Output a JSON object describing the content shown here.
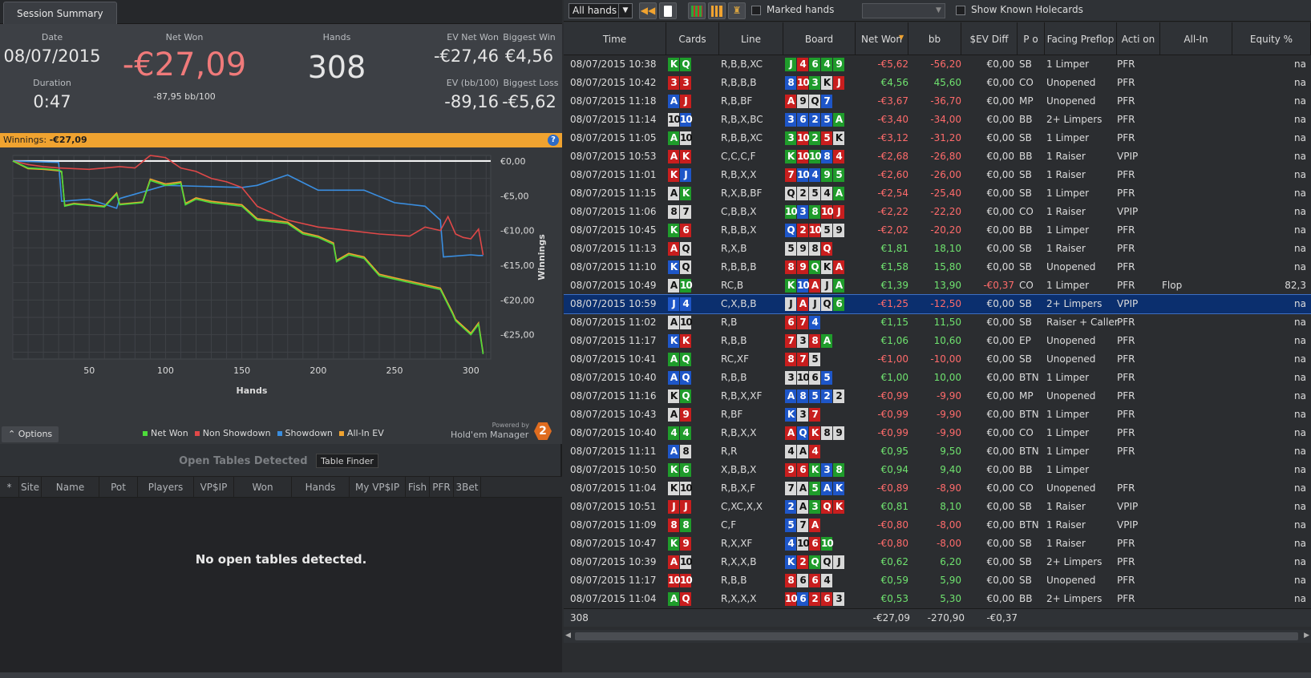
{
  "tab": {
    "label": "Session Summary"
  },
  "summary": {
    "date_label": "Date",
    "date": "08/07/2015",
    "duration_label": "Duration",
    "duration": "0:47",
    "netwon_label": "Net Won",
    "netwon": "-€27,09",
    "bb100": "-87,95 bb/100",
    "hands_label": "Hands",
    "hands": "308",
    "evnetwon_label": "EV Net Won",
    "evnetwon": "-€27,46",
    "biggestwin_label": "Biggest Win",
    "biggestwin": "€4,56",
    "evbb_label": "EV (bb/100)",
    "evbb": "-89,16",
    "biggestloss_label": "Biggest Loss",
    "biggestloss": "-€5,62"
  },
  "banner": {
    "label": "Winnings:",
    "value": "-€27,09"
  },
  "chart_data": {
    "type": "line",
    "title": "",
    "xlabel": "Hands",
    "ylabel": "Winnings",
    "xlim": [
      0,
      313
    ],
    "ylim": [
      -28.5,
      0.8
    ],
    "xticks": [
      50,
      100,
      150,
      200,
      250,
      300
    ],
    "yticks": [
      0,
      -5,
      -10,
      -15,
      -20,
      -25
    ],
    "ytick_labels": [
      "€0,00",
      "-€5,00",
      "-€10,00",
      "-€15,00",
      "-€20,00",
      "-€25,00"
    ],
    "grid": true,
    "legend": "bottom",
    "series": [
      {
        "name": "Net Won",
        "color": "#4ddc3a",
        "x": [
          0,
          10,
          20,
          30,
          32,
          34,
          40,
          60,
          68,
          70,
          85,
          90,
          100,
          110,
          113,
          120,
          130,
          150,
          160,
          180,
          190,
          200,
          210,
          212,
          220,
          230,
          240,
          250,
          270,
          280,
          288,
          290,
          300,
          305,
          308
        ],
        "y": [
          0,
          -1,
          -1.1,
          -1.3,
          -1.5,
          -6.5,
          -6.2,
          -6.6,
          -4.8,
          -6.3,
          -6,
          -2.8,
          -3.5,
          -3.2,
          -6.3,
          -5.5,
          -6,
          -6.5,
          -8.5,
          -9,
          -10.5,
          -11,
          -12,
          -14.5,
          -13.5,
          -14,
          -16.5,
          -17,
          -18,
          -18.5,
          -22,
          -23,
          -25,
          -23.5,
          -27.8
        ]
      },
      {
        "name": "Non Showdown",
        "color": "#e04848",
        "x": [
          0,
          10,
          20,
          30,
          50,
          70,
          80,
          90,
          100,
          110,
          120,
          130,
          140,
          150,
          160,
          180,
          200,
          220,
          240,
          260,
          270,
          280,
          285,
          290,
          295,
          300,
          305,
          308
        ],
        "y": [
          0,
          -0.5,
          -0.8,
          -1,
          -1.2,
          -0.8,
          -1,
          0.8,
          0.5,
          -1,
          -1.5,
          -2.5,
          -3,
          -3.8,
          -6.5,
          -8.5,
          -9.5,
          -10,
          -10.5,
          -10.8,
          -9.5,
          -10,
          -8,
          -10.5,
          -11,
          -11.2,
          -9.8,
          -13.5
        ]
      },
      {
        "name": "Showdown",
        "color": "#3a8ee0",
        "x": [
          0,
          30,
          32,
          50,
          68,
          70,
          100,
          150,
          160,
          180,
          200,
          230,
          250,
          270,
          280,
          282,
          300,
          305,
          308
        ],
        "y": [
          0,
          -0.2,
          -5.8,
          -5.5,
          -6.8,
          -5.4,
          -3.5,
          -3.8,
          -3.5,
          -2,
          -4.2,
          -4.2,
          -6,
          -6.5,
          -8.5,
          -13.8,
          -13.5,
          -13.6,
          -13.6
        ]
      },
      {
        "name": "All-In EV",
        "color": "#f0a330",
        "x": [
          0,
          10,
          20,
          30,
          32,
          34,
          40,
          60,
          68,
          70,
          85,
          90,
          100,
          110,
          113,
          120,
          130,
          150,
          160,
          180,
          190,
          200,
          210,
          212,
          220,
          230,
          240,
          250,
          270,
          280,
          288,
          290,
          300,
          305,
          308
        ],
        "y": [
          0,
          -1.1,
          -1.2,
          -1.4,
          -1.6,
          -6.4,
          -6.1,
          -6.5,
          -4.6,
          -6.2,
          -5.9,
          -2.6,
          -3.3,
          -3,
          -6.1,
          -5.3,
          -5.8,
          -6.3,
          -8.3,
          -8.8,
          -10.3,
          -10.8,
          -11.8,
          -14.3,
          -13.3,
          -13.8,
          -16.3,
          -16.8,
          -17.8,
          -18.3,
          -21.8,
          -22.8,
          -24.8,
          -23.3,
          -27.6
        ]
      }
    ]
  },
  "legend_items": [
    {
      "label": "Net Won",
      "color": "#4ddc3a"
    },
    {
      "label": "Non Showdown",
      "color": "#e04848"
    },
    {
      "label": "Showdown",
      "color": "#3a8ee0"
    },
    {
      "label": "All-In EV",
      "color": "#f0a330"
    }
  ],
  "options_label": "Options",
  "powered_label": "Powered by",
  "logo_label": "Hold'em Manager",
  "logo_badge": "2",
  "open_tables": {
    "title": "Open Tables Detected",
    "finder_label": "Table Finder",
    "empty": "No open tables detected.",
    "columns": [
      "*",
      "Site",
      "Name",
      "Pot",
      "Players",
      "VP$IP",
      "Won",
      "Hands",
      "My VP$IP",
      "Fish",
      "PFR",
      "3Bet"
    ]
  },
  "toolbar": {
    "filter": "All hands",
    "marked_label": "Marked hands",
    "known_label": "Show Known Holecards"
  },
  "columns": [
    "Time",
    "Cards",
    "Line",
    "Board",
    "Net Won",
    "bb",
    "$EV Diff",
    "P o",
    "Facing Preflop",
    "Acti on",
    "All-In",
    "Equity %"
  ],
  "rows": [
    {
      "time": "08/07/2015 10:38",
      "cards": [
        "K c",
        "Q c"
      ],
      "line": "R,B,B,XC",
      "board": [
        "J c",
        "4 h",
        "6 c",
        "4 c",
        "9 c"
      ],
      "won": "-€5,62",
      "bb": "-56,20",
      "ev": "€0,00",
      "pos": "SB",
      "facing": "1 Limper",
      "action": "PFR",
      "allin": "",
      "equity": "na"
    },
    {
      "time": "08/07/2015 10:42",
      "cards": [
        "3 h",
        "3 h"
      ],
      "line": "R,B,B,B",
      "board": [
        "8 d",
        "10 h",
        "3 c",
        "K s",
        "J h"
      ],
      "won": "€4,56",
      "bb": "45,60",
      "ev": "€0,00",
      "pos": "CO",
      "facing": "Unopened",
      "action": "PFR",
      "allin": "",
      "equity": "na"
    },
    {
      "time": "08/07/2015 11:18",
      "cards": [
        "A d",
        "J h"
      ],
      "line": "R,B,BF",
      "board": [
        "A h",
        "9 s",
        "Q s",
        "7 d"
      ],
      "won": "-€3,67",
      "bb": "-36,70",
      "ev": "€0,00",
      "pos": "MP",
      "facing": "Unopened",
      "action": "PFR",
      "allin": "",
      "equity": "na"
    },
    {
      "time": "08/07/2015 11:14",
      "cards": [
        "10 s",
        "10 d"
      ],
      "line": "R,B,X,BC",
      "board": [
        "3 d",
        "6 d",
        "2 d",
        "5 d",
        "A c"
      ],
      "won": "-€3,40",
      "bb": "-34,00",
      "ev": "€0,00",
      "pos": "BB",
      "facing": "2+ Limpers",
      "action": "PFR",
      "allin": "",
      "equity": "na"
    },
    {
      "time": "08/07/2015 11:05",
      "cards": [
        "A c",
        "10 s"
      ],
      "line": "R,B,B,XC",
      "board": [
        "3 c",
        "10 h",
        "2 c",
        "5 h",
        "K s"
      ],
      "won": "-€3,12",
      "bb": "-31,20",
      "ev": "€0,00",
      "pos": "SB",
      "facing": "1 Limper",
      "action": "PFR",
      "allin": "",
      "equity": "na"
    },
    {
      "time": "08/07/2015 10:53",
      "cards": [
        "A h",
        "K h"
      ],
      "line": "C,C,C,F",
      "board": [
        "K c",
        "10 h",
        "10 c",
        "8 d",
        "4 h"
      ],
      "won": "-€2,68",
      "bb": "-26,80",
      "ev": "€0,00",
      "pos": "BB",
      "facing": "1 Raiser",
      "action": "VPIP",
      "allin": "",
      "equity": "na"
    },
    {
      "time": "08/07/2015 11:01",
      "cards": [
        "K h",
        "J d"
      ],
      "line": "R,B,X,X",
      "board": [
        "7 h",
        "10 d",
        "4 d",
        "9 c",
        "5 c"
      ],
      "won": "-€2,60",
      "bb": "-26,00",
      "ev": "€0,00",
      "pos": "SB",
      "facing": "1 Raiser",
      "action": "PFR",
      "allin": "",
      "equity": "na"
    },
    {
      "time": "08/07/2015 11:15",
      "cards": [
        "A s",
        "K c"
      ],
      "line": "R,X,B,BF",
      "board": [
        "Q s",
        "2 s",
        "5 s",
        "4 s",
        "A c"
      ],
      "won": "-€2,54",
      "bb": "-25,40",
      "ev": "€0,00",
      "pos": "SB",
      "facing": "1 Limper",
      "action": "PFR",
      "allin": "",
      "equity": "na"
    },
    {
      "time": "08/07/2015 11:06",
      "cards": [
        "8 s",
        "7 s"
      ],
      "line": "C,B,B,X",
      "board": [
        "10 c",
        "3 d",
        "8 c",
        "10 h",
        "J h"
      ],
      "won": "-€2,22",
      "bb": "-22,20",
      "ev": "€0,00",
      "pos": "CO",
      "facing": "1 Raiser",
      "action": "VPIP",
      "allin": "",
      "equity": "na"
    },
    {
      "time": "08/07/2015 10:45",
      "cards": [
        "K c",
        "6 h"
      ],
      "line": "R,B,B,X",
      "board": [
        "Q d",
        "2 h",
        "10 h",
        "5 s",
        "9 s"
      ],
      "won": "-€2,02",
      "bb": "-20,20",
      "ev": "€0,00",
      "pos": "BB",
      "facing": "1 Limper",
      "action": "PFR",
      "allin": "",
      "equity": "na"
    },
    {
      "time": "08/07/2015 11:13",
      "cards": [
        "A h",
        "Q s"
      ],
      "line": "R,X,B",
      "board": [
        "5 s",
        "9 s",
        "8 s",
        "Q h"
      ],
      "won": "€1,81",
      "bb": "18,10",
      "ev": "€0,00",
      "pos": "SB",
      "facing": "1 Raiser",
      "action": "PFR",
      "allin": "",
      "equity": "na"
    },
    {
      "time": "08/07/2015 11:10",
      "cards": [
        "K d",
        "Q s"
      ],
      "line": "R,B,B,B",
      "board": [
        "8 h",
        "9 h",
        "Q c",
        "K s",
        "A h"
      ],
      "won": "€1,58",
      "bb": "15,80",
      "ev": "€0,00",
      "pos": "SB",
      "facing": "Unopened",
      "action": "PFR",
      "allin": "",
      "equity": "na"
    },
    {
      "time": "08/07/2015 10:49",
      "cards": [
        "A s",
        "10 c"
      ],
      "line": "RC,B",
      "board": [
        "K c",
        "10 d",
        "A h",
        "J s",
        "A c"
      ],
      "won": "€1,39",
      "bb": "13,90",
      "ev": "-€0,37",
      "pos": "CO",
      "facing": "1 Limper",
      "action": "PFR",
      "allin": "Flop",
      "equity": "82,3"
    },
    {
      "time": "08/07/2015 10:59",
      "cards": [
        "J d",
        "4 d"
      ],
      "line": "C,X,B,B",
      "board": [
        "J s",
        "A h",
        "J s",
        "Q s",
        "6 c"
      ],
      "won": "-€1,25",
      "bb": "-12,50",
      "ev": "€0,00",
      "pos": "SB",
      "facing": "2+ Limpers",
      "action": "VPIP",
      "allin": "",
      "equity": "na",
      "selected": true
    },
    {
      "time": "08/07/2015 11:02",
      "cards": [
        "A s",
        "10 s"
      ],
      "line": "R,B",
      "board": [
        "6 h",
        "7 h",
        "4 d"
      ],
      "won": "€1,15",
      "bb": "11,50",
      "ev": "€0,00",
      "pos": "SB",
      "facing": "Raiser + Callers",
      "action": "PFR",
      "allin": "",
      "equity": "na"
    },
    {
      "time": "08/07/2015 11:17",
      "cards": [
        "K d",
        "K h"
      ],
      "line": "R,B,B",
      "board": [
        "7 h",
        "3 s",
        "8 h",
        "A c"
      ],
      "won": "€1,06",
      "bb": "10,60",
      "ev": "€0,00",
      "pos": "EP",
      "facing": "Unopened",
      "action": "PFR",
      "allin": "",
      "equity": "na"
    },
    {
      "time": "08/07/2015 10:41",
      "cards": [
        "A c",
        "Q c"
      ],
      "line": "RC,XF",
      "board": [
        "8 h",
        "7 h",
        "5 s"
      ],
      "won": "-€1,00",
      "bb": "-10,00",
      "ev": "€0,00",
      "pos": "SB",
      "facing": "Unopened",
      "action": "PFR",
      "allin": "",
      "equity": "na"
    },
    {
      "time": "08/07/2015 10:40",
      "cards": [
        "A d",
        "Q d"
      ],
      "line": "R,B,B",
      "board": [
        "3 s",
        "10 s",
        "6 s",
        "5 d"
      ],
      "won": "€1,00",
      "bb": "10,00",
      "ev": "€0,00",
      "pos": "BTN",
      "facing": "1 Limper",
      "action": "PFR",
      "allin": "",
      "equity": "na"
    },
    {
      "time": "08/07/2015 11:16",
      "cards": [
        "K s",
        "Q c"
      ],
      "line": "R,B,X,XF",
      "board": [
        "A d",
        "8 d",
        "5 d",
        "2 d",
        "2 s"
      ],
      "won": "-€0,99",
      "bb": "-9,90",
      "ev": "€0,00",
      "pos": "MP",
      "facing": "Unopened",
      "action": "PFR",
      "allin": "",
      "equity": "na"
    },
    {
      "time": "08/07/2015 10:43",
      "cards": [
        "A s",
        "9 h"
      ],
      "line": "R,BF",
      "board": [
        "K d",
        "3 s",
        "7 h"
      ],
      "won": "-€0,99",
      "bb": "-9,90",
      "ev": "€0,00",
      "pos": "BTN",
      "facing": "1 Limper",
      "action": "PFR",
      "allin": "",
      "equity": "na"
    },
    {
      "time": "08/07/2015 10:40",
      "cards": [
        "4 c",
        "4 c"
      ],
      "line": "R,B,X,X",
      "board": [
        "A h",
        "Q d",
        "K h",
        "8 s",
        "9 s"
      ],
      "won": "-€0,99",
      "bb": "-9,90",
      "ev": "€0,00",
      "pos": "CO",
      "facing": "1 Limper",
      "action": "PFR",
      "allin": "",
      "equity": "na"
    },
    {
      "time": "08/07/2015 11:11",
      "cards": [
        "A d",
        "8 s"
      ],
      "line": "R,R",
      "board": [
        "4 s",
        "A s",
        "4 h"
      ],
      "won": "€0,95",
      "bb": "9,50",
      "ev": "€0,00",
      "pos": "BTN",
      "facing": "1 Limper",
      "action": "PFR",
      "allin": "",
      "equity": "na"
    },
    {
      "time": "08/07/2015 10:50",
      "cards": [
        "K c",
        "6 c"
      ],
      "line": "X,B,B,X",
      "board": [
        "9 h",
        "6 h",
        "K c",
        "3 d",
        "8 c"
      ],
      "won": "€0,94",
      "bb": "9,40",
      "ev": "€0,00",
      "pos": "BB",
      "facing": "1 Limper",
      "action": "",
      "allin": "",
      "equity": "na"
    },
    {
      "time": "08/07/2015 11:04",
      "cards": [
        "K s",
        "10 s"
      ],
      "line": "R,B,X,F",
      "board": [
        "7 s",
        "A s",
        "5 c",
        "A d",
        "K d"
      ],
      "won": "-€0,89",
      "bb": "-8,90",
      "ev": "€0,00",
      "pos": "CO",
      "facing": "Unopened",
      "action": "PFR",
      "allin": "",
      "equity": "na"
    },
    {
      "time": "08/07/2015 10:51",
      "cards": [
        "J h",
        "J h"
      ],
      "line": "C,XC,X,X",
      "board": [
        "2 d",
        "A s",
        "3 c",
        "Q h",
        "K h"
      ],
      "won": "€0,81",
      "bb": "8,10",
      "ev": "€0,00",
      "pos": "SB",
      "facing": "1 Raiser",
      "action": "VPIP",
      "allin": "",
      "equity": "na"
    },
    {
      "time": "08/07/2015 11:09",
      "cards": [
        "8 h",
        "8 c"
      ],
      "line": "C,F",
      "board": [
        "5 d",
        "7 s",
        "A h"
      ],
      "won": "-€0,80",
      "bb": "-8,00",
      "ev": "€0,00",
      "pos": "BTN",
      "facing": "1 Raiser",
      "action": "VPIP",
      "allin": "",
      "equity": "na"
    },
    {
      "time": "08/07/2015 10:47",
      "cards": [
        "K c",
        "9 h"
      ],
      "line": "R,X,XF",
      "board": [
        "4 d",
        "10 s",
        "6 h",
        "10 c"
      ],
      "won": "-€0,80",
      "bb": "-8,00",
      "ev": "€0,00",
      "pos": "SB",
      "facing": "1 Raiser",
      "action": "PFR",
      "allin": "",
      "equity": "na"
    },
    {
      "time": "08/07/2015 10:39",
      "cards": [
        "A h",
        "10 s"
      ],
      "line": "R,X,X,B",
      "board": [
        "K d",
        "2 h",
        "Q c",
        "Q s",
        "J s"
      ],
      "won": "€0,62",
      "bb": "6,20",
      "ev": "€0,00",
      "pos": "SB",
      "facing": "2+ Limpers",
      "action": "PFR",
      "allin": "",
      "equity": "na"
    },
    {
      "time": "08/07/2015 11:17",
      "cards": [
        "10 h",
        "10 h"
      ],
      "line": "R,B,B",
      "board": [
        "8 h",
        "6 s",
        "6 h",
        "4 s"
      ],
      "won": "€0,59",
      "bb": "5,90",
      "ev": "€0,00",
      "pos": "SB",
      "facing": "Unopened",
      "action": "PFR",
      "allin": "",
      "equity": "na"
    },
    {
      "time": "08/07/2015 11:04",
      "cards": [
        "A c",
        "Q h"
      ],
      "line": "R,X,X,X",
      "board": [
        "10 h",
        "6 d",
        "2 h",
        "6 h",
        "3 s"
      ],
      "won": "€0,53",
      "bb": "5,30",
      "ev": "€0,00",
      "pos": "BB",
      "facing": "2+ Limpers",
      "action": "PFR",
      "allin": "",
      "equity": "na"
    }
  ],
  "footer": {
    "count": "308",
    "won": "-€27,09",
    "bb": "-270,90",
    "ev": "-€0,37"
  }
}
